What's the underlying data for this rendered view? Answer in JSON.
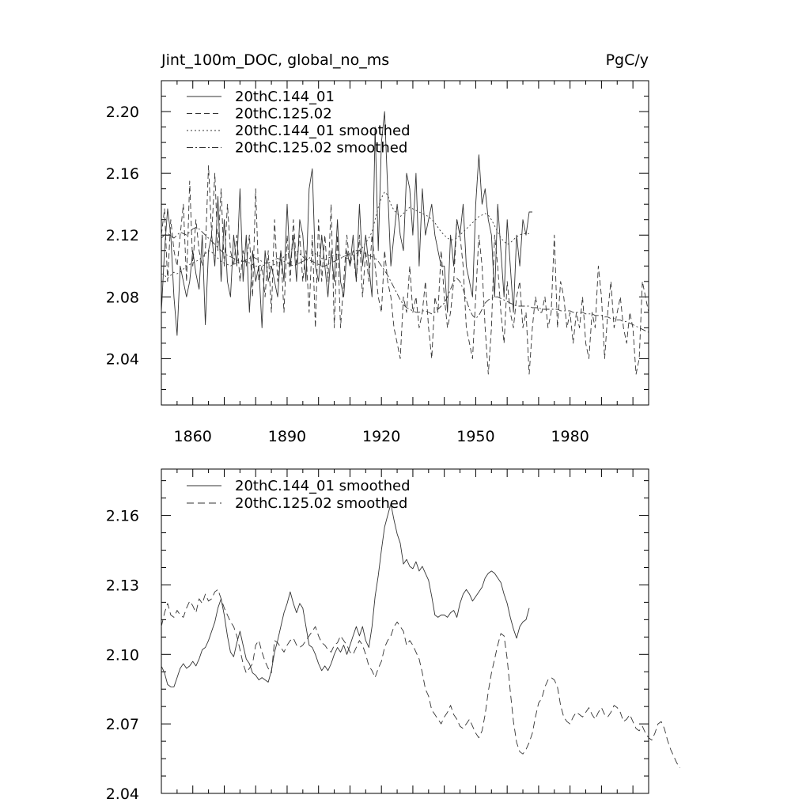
{
  "figure": {
    "title_left": "Jint_100m_DOC, global_no_ms",
    "title_right": "PgC/y"
  },
  "chart_data": [
    {
      "type": "line",
      "title": "Jint_100m_DOC, global_no_ms",
      "units": "PgC/y",
      "xlim": [
        1850,
        2005
      ],
      "ylim": [
        2.01,
        2.22
      ],
      "xticks": [
        1860,
        1890,
        1920,
        1950,
        1980
      ],
      "yticks": [
        2.04,
        2.08,
        2.12,
        2.16,
        2.2
      ],
      "ytick_labels": [
        "2.04",
        "2.08",
        "2.12",
        "2.16",
        "2.20"
      ],
      "legend_position": "top-left",
      "series": [
        {
          "name": "20thC.144_01",
          "dash": "",
          "x_start": 1850,
          "values": [
            2.07,
            2.11,
            2.137,
            2.12,
            2.08,
            2.055,
            2.1,
            2.09,
            2.08,
            2.09,
            2.11,
            2.095,
            2.085,
            2.12,
            2.062,
            2.11,
            2.12,
            2.1,
            2.145,
            2.09,
            2.13,
            2.09,
            2.08,
            2.12,
            2.1,
            2.15,
            2.09,
            2.12,
            2.07,
            2.11,
            2.09,
            2.1,
            2.06,
            2.11,
            2.09,
            2.1,
            2.09,
            2.08,
            2.11,
            2.09,
            2.14,
            2.1,
            2.12,
            2.09,
            2.13,
            2.12,
            2.09,
            2.15,
            2.163,
            2.1,
            2.09,
            2.12,
            2.1,
            2.08,
            2.11,
            2.09,
            2.13,
            2.09,
            2.08,
            2.11,
            2.1,
            2.12,
            2.09,
            2.14,
            2.1,
            2.12,
            2.1,
            2.08,
            2.19,
            2.11,
            2.18,
            2.2,
            2.15,
            2.1,
            2.12,
            2.14,
            2.12,
            2.11,
            2.16,
            2.15,
            2.12,
            2.16,
            2.1,
            2.15,
            2.12,
            2.13,
            2.14,
            2.12,
            2.11,
            2.1,
            2.1,
            2.07,
            2.12,
            2.1,
            2.13,
            2.12,
            2.14,
            2.1,
            2.09,
            2.08,
            2.14,
            2.172,
            2.14,
            2.15,
            2.13,
            2.12,
            2.08,
            2.14,
            2.11,
            2.08,
            2.13,
            2.1,
            2.07,
            2.12,
            2.1,
            2.13,
            2.12,
            2.135,
            2.135
          ]
        },
        {
          "name": "20thC.125.02",
          "dash": "7,4",
          "x_start": 1850,
          "values": [
            2.12,
            2.137,
            2.09,
            2.13,
            2.11,
            2.1,
            2.12,
            2.14,
            2.09,
            2.155,
            2.1,
            2.13,
            2.11,
            2.1,
            2.11,
            2.165,
            2.12,
            2.16,
            2.11,
            2.15,
            2.1,
            2.14,
            2.11,
            2.1,
            2.12,
            2.09,
            2.11,
            2.1,
            2.12,
            2.08,
            2.15,
            2.09,
            2.1,
            2.08,
            2.11,
            2.07,
            2.13,
            2.09,
            2.11,
            2.07,
            2.12,
            2.09,
            2.13,
            2.1,
            2.12,
            2.09,
            2.11,
            2.07,
            2.12,
            2.06,
            2.13,
            2.09,
            2.12,
            2.09,
            2.14,
            2.06,
            2.12,
            2.06,
            2.09,
            2.12,
            2.1,
            2.11,
            2.09,
            2.12,
            2.08,
            2.11,
            2.09,
            2.12,
            2.1,
            2.08,
            2.07,
            2.11,
            2.09,
            2.08,
            2.06,
            2.05,
            2.04,
            2.08,
            2.07,
            2.1,
            2.07,
            2.08,
            2.06,
            2.07,
            2.09,
            2.06,
            2.04,
            2.08,
            2.07,
            2.11,
            2.08,
            2.06,
            2.07,
            2.09,
            2.13,
            2.12,
            2.1,
            2.06,
            2.05,
            2.04,
            2.08,
            2.12,
            2.1,
            2.06,
            2.03,
            2.06,
            2.12,
            2.1,
            2.07,
            2.05,
            2.09,
            2.07,
            2.06,
            2.08,
            2.09,
            2.06,
            2.07,
            2.03,
            2.06,
            2.08,
            2.07,
            2.07,
            2.08,
            2.06,
            2.07,
            2.12,
            2.06,
            2.09,
            2.08,
            2.06,
            2.07,
            2.05,
            2.07,
            2.06,
            2.08,
            2.05,
            2.04,
            2.07,
            2.06,
            2.1,
            2.08,
            2.04,
            2.07,
            2.09,
            2.06,
            2.07,
            2.08,
            2.06,
            2.05,
            2.07,
            2.06,
            2.03,
            2.04,
            2.09,
            2.08,
            2.07
          ]
        },
        {
          "name": "20thC.144_01 smoothed",
          "dash": "2,3",
          "x_start": 1850,
          "values": [
            2.095,
            2.094,
            2.092,
            2.094,
            2.096,
            2.095,
            2.096,
            2.098,
            2.1,
            2.101,
            2.102,
            2.103,
            2.104,
            2.106,
            2.108,
            2.11,
            2.109,
            2.107,
            2.105,
            2.103,
            2.102,
            2.101,
            2.1,
            2.101,
            2.102,
            2.103,
            2.104,
            2.103,
            2.102,
            2.101,
            2.1,
            2.1,
            2.101,
            2.1,
            2.099,
            2.1,
            2.101,
            2.102,
            2.104,
            2.106,
            2.108,
            2.11,
            2.112,
            2.11,
            2.108,
            2.106,
            2.104,
            2.105,
            2.107,
            2.108,
            2.107,
            2.105,
            2.104,
            2.105,
            2.106,
            2.107,
            2.108,
            2.107,
            2.106,
            2.105,
            2.105,
            2.106,
            2.108,
            2.11,
            2.112,
            2.115,
            2.118,
            2.122,
            2.13,
            2.138,
            2.144,
            2.148,
            2.146,
            2.14,
            2.136,
            2.134,
            2.132,
            2.134,
            2.136,
            2.138,
            2.137,
            2.136,
            2.135,
            2.134,
            2.133,
            2.132,
            2.13,
            2.128,
            2.125,
            2.122,
            2.12,
            2.118,
            2.117,
            2.117,
            2.118,
            2.12,
            2.122,
            2.124,
            2.126,
            2.128,
            2.13,
            2.132,
            2.133,
            2.134,
            2.133,
            2.13,
            2.126,
            2.122,
            2.118,
            2.116,
            2.114,
            2.115,
            2.117,
            2.119,
            2.12,
            2.121,
            2.121,
            2.121
          ]
        },
        {
          "name": "20thC.125.02 smoothed",
          "dash": "8,3,2,3",
          "x_start": 1850,
          "values": [
            2.118,
            2.12,
            2.121,
            2.12,
            2.118,
            2.12,
            2.122,
            2.121,
            2.12,
            2.122,
            2.124,
            2.125,
            2.124,
            2.122,
            2.12,
            2.118,
            2.116,
            2.114,
            2.112,
            2.11,
            2.108,
            2.107,
            2.106,
            2.105,
            2.104,
            2.103,
            2.103,
            2.104,
            2.105,
            2.106,
            2.105,
            2.104,
            2.103,
            2.102,
            2.102,
            2.103,
            2.104,
            2.105,
            2.104,
            2.103,
            2.102,
            2.101,
            2.1,
            2.101,
            2.102,
            2.103,
            2.104,
            2.104,
            2.103,
            2.102,
            2.101,
            2.1,
            2.1,
            2.101,
            2.102,
            2.103,
            2.104,
            2.105,
            2.106,
            2.107,
            2.108,
            2.109,
            2.11,
            2.11,
            2.109,
            2.108,
            2.107,
            2.106,
            2.105,
            2.103,
            2.1,
            2.097,
            2.094,
            2.09,
            2.086,
            2.082,
            2.078,
            2.075,
            2.073,
            2.072,
            2.071,
            2.07,
            2.07,
            2.071,
            2.071,
            2.07,
            2.069,
            2.07,
            2.072,
            2.074,
            2.076,
            2.08,
            2.085,
            2.09,
            2.092,
            2.09,
            2.085,
            2.078,
            2.072,
            2.068,
            2.066,
            2.068,
            2.072,
            2.076,
            2.078,
            2.079,
            2.08,
            2.08,
            2.079,
            2.078,
            2.077,
            2.076,
            2.075,
            2.074,
            2.074,
            2.074,
            2.074,
            2.074,
            2.073,
            2.073,
            2.073,
            2.072,
            2.072,
            2.072,
            2.072,
            2.072,
            2.072,
            2.071,
            2.071,
            2.071,
            2.071,
            2.07,
            2.07,
            2.07,
            2.07,
            2.069,
            2.069,
            2.069,
            2.068,
            2.068,
            2.068,
            2.067,
            2.067,
            2.066,
            2.066,
            2.065,
            2.065,
            2.064,
            2.064,
            2.063,
            2.062,
            2.061,
            2.06,
            2.059,
            2.058,
            2.057
          ]
        }
      ]
    },
    {
      "type": "line",
      "title": "",
      "xlim": [
        1850,
        2005
      ],
      "ylim": [
        2.04,
        2.18
      ],
      "yticks": [
        2.04,
        2.07,
        2.1,
        2.13,
        2.16
      ],
      "ytick_labels": [
        "2.04",
        "2.07",
        "2.10",
        "2.13",
        "2.16"
      ],
      "legend_position": "top-left",
      "series": [
        {
          "name": "20thC.144_01 smoothed",
          "dash": "",
          "x_start": 1850,
          "values": [
            2.095,
            2.092,
            2.087,
            2.086,
            2.086,
            2.09,
            2.094,
            2.096,
            2.094,
            2.095,
            2.097,
            2.095,
            2.098,
            2.102,
            2.103,
            2.106,
            2.11,
            2.114,
            2.12,
            2.124,
            2.117,
            2.108,
            2.101,
            2.099,
            2.105,
            2.11,
            2.104,
            2.098,
            2.096,
            2.092,
            2.091,
            2.089,
            2.09,
            2.089,
            2.088,
            2.093,
            2.101,
            2.106,
            2.112,
            2.118,
            2.122,
            2.127,
            2.122,
            2.118,
            2.122,
            2.12,
            2.112,
            2.104,
            2.103,
            2.1,
            2.096,
            2.093,
            2.095,
            2.093,
            2.096,
            2.1,
            2.103,
            2.101,
            2.104,
            2.1,
            2.104,
            2.108,
            2.112,
            2.108,
            2.112,
            2.106,
            2.103,
            2.112,
            2.125,
            2.134,
            2.145,
            2.155,
            2.16,
            2.165,
            2.158,
            2.152,
            2.148,
            2.139,
            2.141,
            2.138,
            2.137,
            2.14,
            2.136,
            2.138,
            2.135,
            2.132,
            2.125,
            2.117,
            2.116,
            2.117,
            2.117,
            2.116,
            2.118,
            2.119,
            2.116,
            2.122,
            2.126,
            2.128,
            2.126,
            2.123,
            2.125,
            2.127,
            2.129,
            2.133,
            2.135,
            2.136,
            2.135,
            2.133,
            2.131,
            2.126,
            2.122,
            2.116,
            2.111,
            2.107,
            2.112,
            2.114,
            2.115,
            2.12
          ]
        },
        {
          "name": "20thC.125.02 smoothed",
          "dash": "9,5",
          "x_start": 1850,
          "values": [
            2.112,
            2.118,
            2.122,
            2.117,
            2.116,
            2.119,
            2.117,
            2.116,
            2.12,
            2.123,
            2.121,
            2.118,
            2.124,
            2.122,
            2.126,
            2.123,
            2.124,
            2.127,
            2.128,
            2.124,
            2.12,
            2.117,
            2.114,
            2.112,
            2.108,
            2.102,
            2.096,
            2.092,
            2.094,
            2.096,
            2.104,
            2.106,
            2.101,
            2.097,
            2.094,
            2.092,
            2.106,
            2.105,
            2.103,
            2.101,
            2.104,
            2.106,
            2.107,
            2.104,
            2.103,
            2.104,
            2.106,
            2.108,
            2.11,
            2.112,
            2.108,
            2.105,
            2.104,
            2.102,
            2.101,
            2.104,
            2.105,
            2.108,
            2.106,
            2.104,
            2.101,
            2.1,
            2.103,
            2.106,
            2.104,
            2.1,
            2.095,
            2.093,
            2.09,
            2.094,
            2.097,
            2.103,
            2.106,
            2.108,
            2.112,
            2.114,
            2.112,
            2.11,
            2.104,
            2.106,
            2.104,
            2.101,
            2.098,
            2.092,
            2.085,
            2.082,
            2.076,
            2.074,
            2.072,
            2.07,
            2.073,
            2.075,
            2.078,
            2.074,
            2.072,
            2.069,
            2.068,
            2.07,
            2.072,
            2.069,
            2.066,
            2.064,
            2.067,
            2.074,
            2.084,
            2.092,
            2.098,
            2.104,
            2.109,
            2.108,
            2.098,
            2.084,
            2.071,
            2.062,
            2.058,
            2.057,
            2.059,
            2.062,
            2.066,
            2.073,
            2.079,
            2.081,
            2.086,
            2.089,
            2.09,
            2.089,
            2.086,
            2.078,
            2.073,
            2.071,
            2.07,
            2.073,
            2.075,
            2.074,
            2.073,
            2.075,
            2.077,
            2.074,
            2.072,
            2.075,
            2.077,
            2.074,
            2.073,
            2.075,
            2.078,
            2.077,
            2.075,
            2.071,
            2.072,
            2.074,
            2.071,
            2.068,
            2.067,
            2.069,
            2.066,
            2.064,
            2.063,
            2.066,
            2.07,
            2.071,
            2.068,
            2.063,
            2.059,
            2.056,
            2.053,
            2.051
          ]
        }
      ]
    }
  ]
}
